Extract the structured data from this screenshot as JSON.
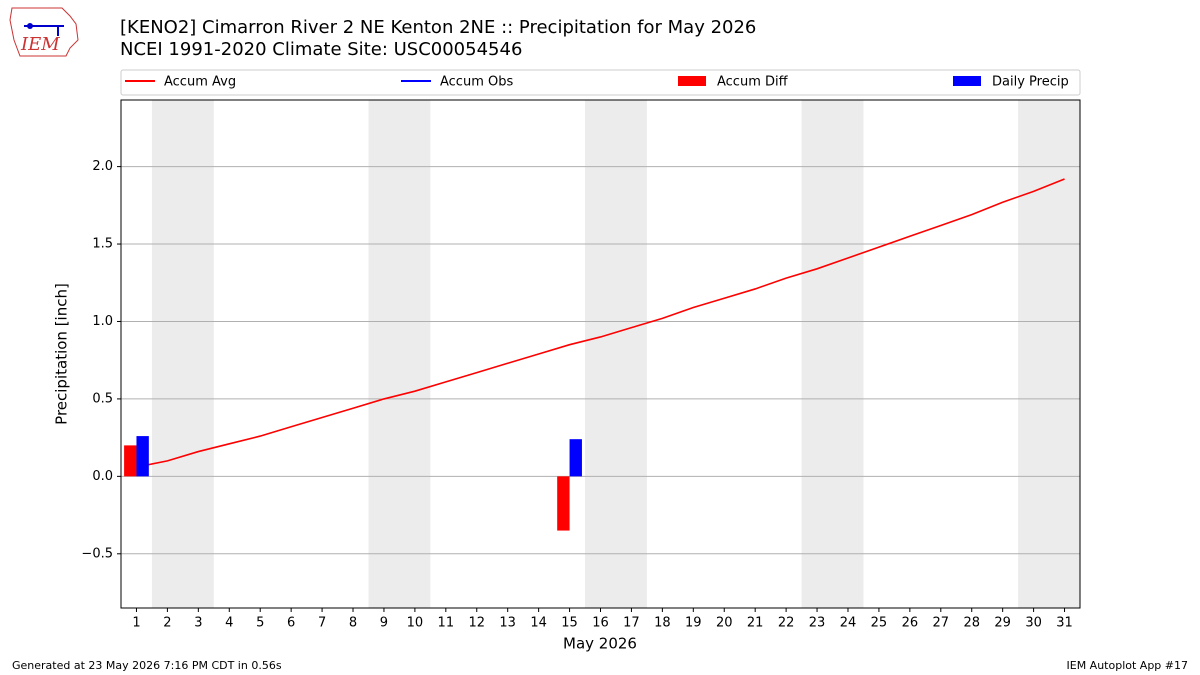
{
  "chart_data": {
    "type": "bar",
    "title": "[KENO2] Cimarron River 2 NE Kenton 2NE :: Precipitation for May 2026",
    "subtitle": "NCEI 1991-2020 Climate Site: USC00054546",
    "xlabel": "May 2026",
    "ylabel": "Precipitation [inch]",
    "logo": "IEM",
    "footer_left": "Generated at 23 May 2026 7:16 PM CDT in 0.56s",
    "footer_right": "IEM Autoplot App #17",
    "x": [
      1,
      2,
      3,
      4,
      5,
      6,
      7,
      8,
      9,
      10,
      11,
      12,
      13,
      14,
      15,
      16,
      17,
      18,
      19,
      20,
      21,
      22,
      23,
      24,
      25,
      26,
      27,
      28,
      29,
      30,
      31
    ],
    "xlim": [
      0.5,
      31.5
    ],
    "xticks": [
      1,
      2,
      3,
      4,
      5,
      6,
      7,
      8,
      9,
      10,
      11,
      12,
      13,
      14,
      15,
      16,
      17,
      18,
      19,
      20,
      21,
      22,
      23,
      24,
      25,
      26,
      27,
      28,
      29,
      30,
      31
    ],
    "ylim": [
      -0.85,
      2.43
    ],
    "yticks": [
      {
        "value": -0.5,
        "label": "−0.5"
      },
      {
        "value": 0,
        "label": "0.0"
      },
      0.5,
      {
        "value": 1,
        "label": "1.0"
      },
      1.5,
      {
        "value": 2,
        "label": "2.0"
      }
    ],
    "grid": true,
    "shaded_spans": [
      [
        1.5,
        3.5
      ],
      [
        8.5,
        10.5
      ],
      [
        15.5,
        17.5
      ],
      [
        22.5,
        24.5
      ],
      [
        29.5,
        31.5
      ]
    ],
    "series": [
      {
        "name": "Accum Avg",
        "kind": "line",
        "color": "#ff0000",
        "values": [
          0.06,
          0.1,
          0.16,
          0.21,
          0.26,
          0.32,
          0.38,
          0.44,
          0.5,
          0.55,
          0.61,
          0.67,
          0.73,
          0.79,
          0.85,
          0.9,
          0.96,
          1.02,
          1.09,
          1.15,
          1.21,
          1.28,
          1.34,
          1.41,
          1.48,
          1.55,
          1.62,
          1.69,
          1.77,
          1.84,
          1.92
        ]
      },
      {
        "name": "Accum Obs",
        "kind": "line",
        "color": "#0000ff",
        "values": [
          null,
          null,
          null,
          null,
          null,
          null,
          null,
          null,
          null,
          null,
          null,
          null,
          null,
          null,
          null,
          null,
          null,
          null,
          null,
          null,
          null,
          null,
          null,
          null,
          null,
          null,
          null,
          null,
          null,
          null,
          null
        ]
      },
      {
        "name": "Accum Diff",
        "kind": "bar",
        "offset": "left",
        "color": "#ff0000",
        "values": [
          0.2,
          null,
          null,
          null,
          null,
          null,
          null,
          null,
          null,
          null,
          null,
          null,
          null,
          null,
          -0.35,
          null,
          null,
          null,
          null,
          null,
          null,
          null,
          null,
          null,
          null,
          null,
          null,
          null,
          null,
          null,
          null
        ]
      },
      {
        "name": "Daily Precip",
        "kind": "bar",
        "offset": "right",
        "color": "#0000ff",
        "values": [
          0.26,
          null,
          null,
          null,
          null,
          null,
          null,
          null,
          null,
          null,
          null,
          null,
          null,
          null,
          0.24,
          null,
          null,
          null,
          null,
          null,
          null,
          null,
          null,
          null,
          null,
          null,
          null,
          null,
          null,
          null,
          null
        ]
      }
    ]
  }
}
